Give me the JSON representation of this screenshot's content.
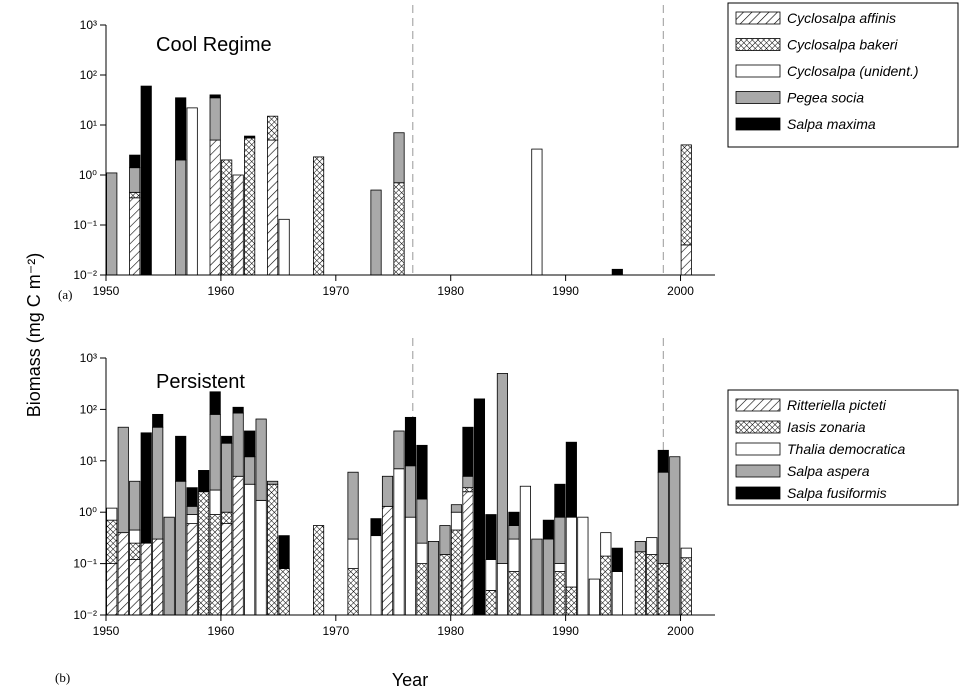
{
  "y_label": "Biomass  (mg C m⁻²)",
  "x_label": "Year",
  "chart_data": [
    {
      "type": "bar",
      "stacked": true,
      "log_scale": true,
      "panel_label": "(a)",
      "title": "Cool Regime",
      "xlim": [
        1950,
        2003
      ],
      "xticks": [
        1950,
        1960,
        1970,
        1980,
        1990,
        2000
      ],
      "ylim": [
        0.01,
        1000
      ],
      "yticks": [
        {
          "value": 0.01,
          "label": "10⁻²"
        },
        {
          "value": 0.1,
          "label": "10⁻¹"
        },
        {
          "value": 1,
          "label": "10⁰"
        },
        {
          "value": 10,
          "label": "10¹"
        },
        {
          "value": 100,
          "label": "10²"
        },
        {
          "value": 1000,
          "label": "10³"
        }
      ],
      "reference_lines_x": [
        1976.7,
        1998.5
      ],
      "legend": "right",
      "series": [
        {
          "name": "Cyclosalpa affinis",
          "color": "#ffffff",
          "pattern": "hatch",
          "x": [
            1953,
            1960,
            1962,
            1965,
            2001
          ],
          "values": [
            0.35,
            5,
            1,
            5,
            0.04
          ]
        },
        {
          "name": "Cyclosalpa bakeri",
          "color": "#ffffff",
          "pattern": "crosshatch",
          "x": [
            1953,
            1961,
            1963,
            1965,
            1969,
            1976,
            2001
          ],
          "values": [
            0.1,
            2,
            5.5,
            10,
            2.3,
            0.7,
            3.96
          ]
        },
        {
          "name": "Cyclosalpa (unident.)",
          "color": "#ffffff",
          "pattern": "none",
          "x": [
            1958,
            1966,
            1988
          ],
          "values": [
            22,
            0.13,
            3.3
          ]
        },
        {
          "name": "Pegea socia",
          "color": "#a9a9a9",
          "pattern": "none",
          "x": [
            1951,
            1953,
            1957,
            1960,
            1974,
            1976
          ],
          "values": [
            1.1,
            0.95,
            2,
            30,
            0.5,
            6.3
          ]
        },
        {
          "name": "Salpa maxima",
          "color": "#000000",
          "pattern": "none",
          "x": [
            1953,
            1954,
            1957,
            1960,
            1963,
            1995
          ],
          "values": [
            1.1,
            60,
            33,
            5,
            0.5,
            0.013
          ]
        }
      ]
    },
    {
      "type": "bar",
      "stacked": true,
      "log_scale": true,
      "panel_label": "(b)",
      "title": "Persistent",
      "xlim": [
        1950,
        2003
      ],
      "xticks": [
        1950,
        1960,
        1970,
        1980,
        1990,
        2000
      ],
      "ylim": [
        0.01,
        1000
      ],
      "yticks": [
        {
          "value": 0.01,
          "label": "10⁻²"
        },
        {
          "value": 0.1,
          "label": "10⁻¹"
        },
        {
          "value": 1,
          "label": "10⁰"
        },
        {
          "value": 10,
          "label": "10¹"
        },
        {
          "value": 100,
          "label": "10²"
        },
        {
          "value": 1000,
          "label": "10³"
        }
      ],
      "reference_lines_x": [
        1976.7,
        1998.5
      ],
      "legend": "right",
      "series": [
        {
          "name": "Ritteriella picteti",
          "color": "#ffffff",
          "pattern": "hatch",
          "x": [
            1951,
            1952,
            1953,
            1954,
            1955,
            1958,
            1961,
            1962,
            1975,
            1982
          ],
          "values": [
            0.1,
            0.4,
            0.12,
            0.25,
            0.3,
            0.6,
            0.6,
            5,
            1.3,
            2.5
          ]
        },
        {
          "name": "Iasis zonaria",
          "color": "#ffffff",
          "pattern": "crosshatch",
          "x": [
            1951,
            1953,
            1959,
            1960,
            1961,
            1965,
            1966,
            1969,
            1972,
            1978,
            1980,
            1981,
            1982,
            1984,
            1986,
            1990,
            1991,
            1994,
            1997,
            1998,
            1999,
            2001
          ],
          "values": [
            0.6,
            0.13,
            2.5,
            0.9,
            0.4,
            3.5,
            0.08,
            0.55,
            0.08,
            0.1,
            0.15,
            0.45,
            0.5,
            0.03,
            0.07,
            0.07,
            0.035,
            0.14,
            0.17,
            0.15,
            0.1,
            0.13
          ]
        },
        {
          "name": "Thalia democratica",
          "color": "#ffffff",
          "pattern": "none",
          "x": [
            1951,
            1953,
            1958,
            1960,
            1963,
            1964,
            1972,
            1974,
            1976,
            1977,
            1978,
            1981,
            1984,
            1985,
            1986,
            1987,
            1990,
            1991,
            1992,
            1993,
            1994,
            1995,
            1998,
            2001
          ],
          "values": [
            0.5,
            0.2,
            0.3,
            1.8,
            3.5,
            1.7,
            0.22,
            0.35,
            7,
            0.8,
            0.15,
            0.55,
            0.09,
            0.1,
            0.23,
            3.2,
            0.03,
            0.765,
            0.8,
            0.05,
            0.26,
            0.07,
            0.17,
            0.07
          ]
        },
        {
          "name": "Salpa aspera",
          "color": "#a9a9a9",
          "pattern": "none",
          "x": [
            1952,
            1953,
            1955,
            1956,
            1957,
            1958,
            1960,
            1961,
            1962,
            1963,
            1964,
            1965,
            1972,
            1975,
            1976,
            1977,
            1978,
            1979,
            1980,
            1981,
            1982,
            1985,
            1986,
            1988,
            1989,
            1990,
            1997,
            1999,
            2000
          ],
          "values": [
            44.6,
            3.55,
            44.7,
            0.8,
            4,
            0.4,
            77.3,
            21,
            80,
            8.5,
            63.3,
            0.5,
            5.7,
            3.7,
            31,
            7.2,
            1.55,
            0.27,
            0.4,
            0.4,
            2,
            500,
            0.25,
            0.3,
            0.3,
            0.7,
            0.1,
            5.9,
            12
          ]
        },
        {
          "name": "Salpa fusiformis",
          "color": "#000000",
          "pattern": "none",
          "x": [
            1954,
            1955,
            1957,
            1958,
            1959,
            1960,
            1961,
            1962,
            1963,
            1966,
            1974,
            1977,
            1978,
            1982,
            1983,
            1984,
            1986,
            1989,
            1990,
            1991,
            1995,
            1999
          ],
          "values": [
            34.75,
            35,
            26,
            1.7,
            4,
            140,
            8,
            25,
            26,
            0.27,
            0.4,
            62,
            18.2,
            40,
            160,
            0.78,
            0.45,
            0.4,
            2.7,
            22.2,
            0.13,
            10
          ]
        }
      ]
    }
  ]
}
